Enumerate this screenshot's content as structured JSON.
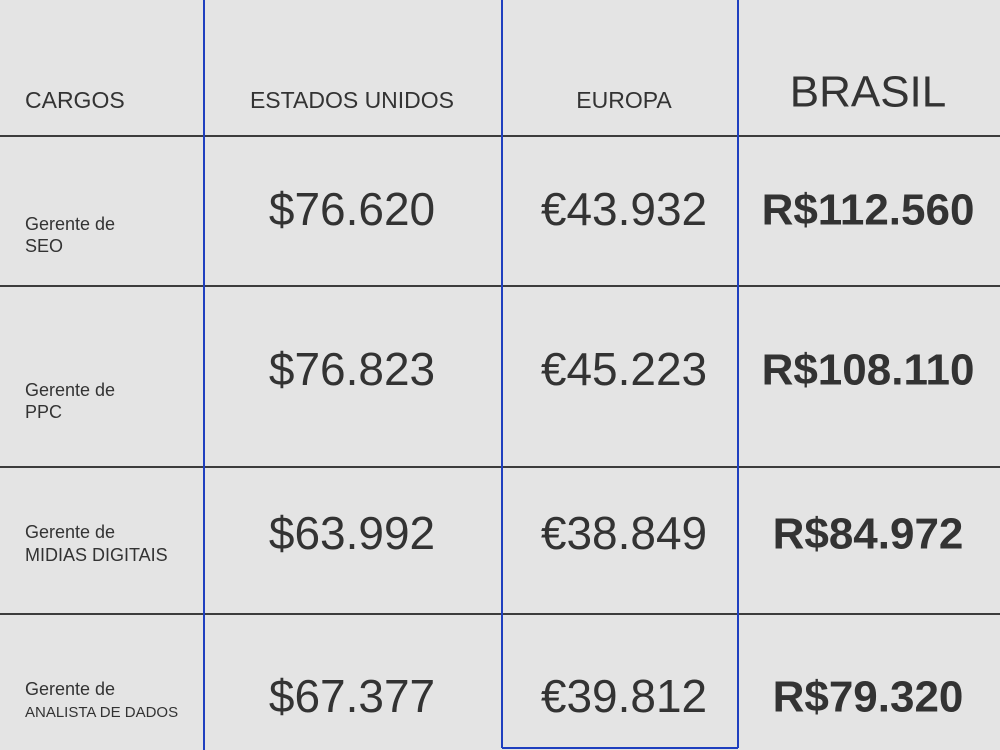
{
  "table": {
    "header": [
      "CARGOS",
      "ESTADOS UNIDOS",
      "EUROPA",
      "BRASIL"
    ],
    "rows": [
      {
        "role": [
          "Gerente de",
          "SEO"
        ],
        "values": [
          "$76.620",
          "€43.932",
          "R$112.560"
        ]
      },
      {
        "role": [
          "Gerente de",
          "PPC"
        ],
        "values": [
          "$76.823",
          "€45.223",
          "R$108.110"
        ]
      },
      {
        "role": [
          "Gerente de",
          "MIDIAS DIGITAIS"
        ],
        "values": [
          "$63.992",
          "€38.849",
          "R$84.972"
        ]
      },
      {
        "role": [
          "Gerente de",
          "ANALISTA DE DADOS"
        ],
        "values": [
          "$67.377",
          "€39.812",
          "R$79.320"
        ]
      }
    ]
  }
}
